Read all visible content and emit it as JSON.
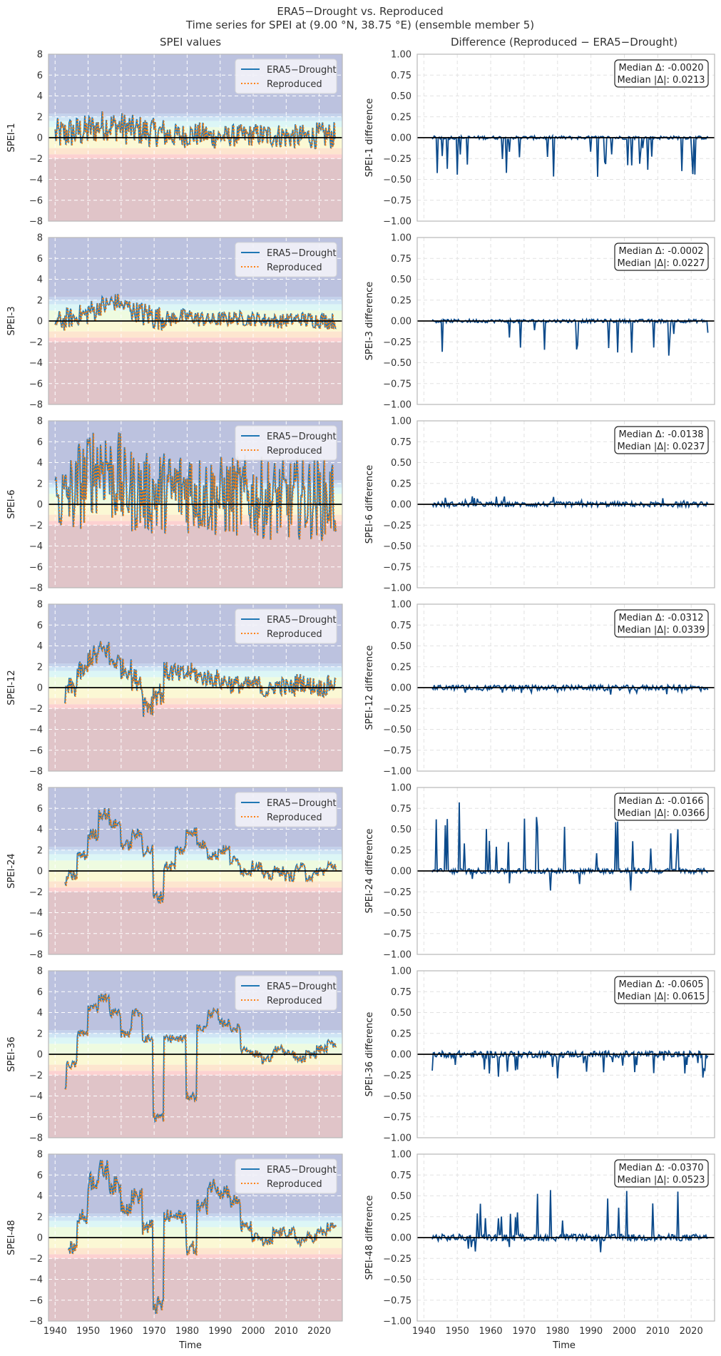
{
  "figure": {
    "title_line1": "ERA5−Drought vs. Reproduced",
    "title_line2": "Time series for SPEI at (9.00 °N, 38.75 °E) (ensemble member 5)",
    "left_column_title": "SPEI values",
    "right_column_title": "Difference (Reproduced − ERA5−Drought)",
    "x_label": "Time"
  },
  "chart_data": [
    {
      "type": "line",
      "panel": "left",
      "ylabel": "SPEI-1",
      "xlim": [
        1938,
        2027
      ],
      "ylim": [
        -8,
        8
      ],
      "yticks": [
        "8",
        "6",
        "4",
        "2",
        "0",
        "−2",
        "−4",
        "−6",
        "−8"
      ],
      "xticks": [
        "1940",
        "1950",
        "1960",
        "1970",
        "1980",
        "1990",
        "2000",
        "2010",
        "2020"
      ],
      "legend": [
        "ERA5−Drought",
        "Reproduced"
      ],
      "grid": true,
      "start_year": 1940,
      "mean": [
        0.3,
        0.5,
        0.6,
        0.9,
        1.2,
        1.1,
        0.9,
        0.7,
        0.6,
        0.5,
        0.3,
        0.2,
        0.3,
        0.3,
        0.1,
        0.1,
        0.2,
        0.2,
        0.3,
        0.2,
        0.2,
        0.1,
        0.1,
        0.1,
        0.2,
        0.2,
        0.2
      ],
      "vol": [
        1.6,
        1.6,
        1.6,
        1.5,
        1.5,
        1.5,
        1.6,
        1.5,
        1.5,
        1.4,
        1.3,
        1.2,
        1.2,
        1.2,
        1.2,
        1.1,
        1.1,
        1.1,
        1.1,
        1.2,
        1.2,
        1.2,
        1.2,
        1.2,
        1.3,
        1.3,
        1.3
      ],
      "colors": [
        "#1f77b4",
        "#ff7f0e"
      ]
    },
    {
      "type": "line",
      "panel": "right",
      "ylabel": "SPEI-1 difference",
      "xlim": [
        1938,
        2027
      ],
      "ylim": [
        -1.0,
        1.0
      ],
      "yticks": [
        "1.00",
        "0.75",
        "0.50",
        "0.25",
        "0.00",
        "−0.25",
        "−0.50",
        "−0.75",
        "−1.00"
      ],
      "xticks": [
        "1940",
        "1950",
        "1960",
        "1970",
        "1980",
        "1990",
        "2000",
        "2010",
        "2020"
      ],
      "median_delta": "Median Δ: -0.0020",
      "median_abs_delta": "Median |Δ|: 0.0213",
      "spike": -0.4,
      "base": 0.02,
      "color": "#0b4a8b"
    },
    {
      "type": "line",
      "panel": "left",
      "ylabel": "SPEI-3",
      "xlim": [
        1938,
        2027
      ],
      "ylim": [
        -8,
        8
      ],
      "yticks": [
        "8",
        "6",
        "4",
        "2",
        "0",
        "−2",
        "−4",
        "−6",
        "−8"
      ],
      "xticks": [
        "1940",
        "1950",
        "1960",
        "1970",
        "1980",
        "1990",
        "2000",
        "2010",
        "2020"
      ],
      "legend": [
        "ERA5−Drought",
        "Reproduced"
      ],
      "grid": true,
      "start_year": 1940,
      "mean": [
        0.0,
        0.3,
        0.6,
        1.0,
        1.5,
        1.8,
        1.4,
        0.9,
        0.6,
        0.3,
        0.2,
        0.4,
        0.4,
        0.2,
        0.1,
        0.2,
        0.3,
        0.2,
        0.2,
        0.1,
        0.0,
        0.1,
        0.2,
        0.1,
        0.1,
        0.0,
        0.1
      ],
      "vol": [
        1.0,
        1.0,
        1.0,
        1.1,
        1.0,
        0.9,
        0.9,
        1.0,
        1.3,
        1.2,
        0.8,
        0.8,
        0.8,
        0.8,
        0.7,
        0.7,
        0.7,
        0.7,
        0.7,
        0.7,
        0.7,
        0.7,
        0.7,
        0.8,
        0.8,
        0.8,
        0.9
      ],
      "colors": [
        "#1f77b4",
        "#ff7f0e"
      ]
    },
    {
      "type": "line",
      "panel": "right",
      "ylabel": "SPEI-3 difference",
      "xlim": [
        1938,
        2027
      ],
      "ylim": [
        -1.0,
        1.0
      ],
      "yticks": [
        "1.00",
        "0.75",
        "0.50",
        "0.25",
        "0.00",
        "−0.25",
        "−0.50",
        "−0.75",
        "−1.00"
      ],
      "xticks": [
        "1940",
        "1950",
        "1960",
        "1970",
        "1980",
        "1990",
        "2000",
        "2010",
        "2020"
      ],
      "median_delta": "Median Δ: -0.0002",
      "median_abs_delta": "Median |Δ|: 0.0227",
      "spike": -0.35,
      "base": 0.02,
      "color": "#0b4a8b"
    },
    {
      "type": "line",
      "panel": "left",
      "ylabel": "SPEI-6",
      "xlim": [
        1938,
        2027
      ],
      "ylim": [
        -8,
        8
      ],
      "yticks": [
        "8",
        "6",
        "4",
        "2",
        "0",
        "−2",
        "−4",
        "−6",
        "−8"
      ],
      "xticks": [
        "1940",
        "1950",
        "1960",
        "1970",
        "1980",
        "1990",
        "2000",
        "2010",
        "2020"
      ],
      "legend": [
        "ERA5−Drought",
        "Reproduced"
      ],
      "grid": true,
      "start_year": 1940,
      "mean": [
        0.5,
        1.0,
        2.0,
        3.5,
        4.0,
        2.5,
        1.5,
        1.2,
        1.0,
        1.0,
        1.2,
        1.5,
        1.6,
        1.0,
        0.8,
        0.7,
        0.8,
        0.8,
        0.6,
        0.6,
        0.5,
        0.4,
        0.6,
        0.6,
        0.5,
        0.5,
        0.6
      ],
      "vol": [
        3.5,
        4.0,
        4.5,
        4.5,
        4.5,
        4.5,
        4.0,
        4.0,
        4.0,
        4.5,
        4.0,
        4.0,
        4.5,
        4.0,
        4.0,
        4.0,
        4.0,
        4.0,
        4.0,
        4.0,
        4.0,
        4.0,
        4.0,
        4.0,
        4.0,
        4.0,
        4.0
      ],
      "colors": [
        "#1f77b4",
        "#ff7f0e"
      ]
    },
    {
      "type": "line",
      "panel": "right",
      "ylabel": "SPEI-6 difference",
      "xlim": [
        1938,
        2027
      ],
      "ylim": [
        -1.0,
        1.0
      ],
      "yticks": [
        "1.00",
        "0.75",
        "0.50",
        "0.25",
        "0.00",
        "−0.25",
        "−0.50",
        "−0.75",
        "−1.00"
      ],
      "xticks": [
        "1940",
        "1950",
        "1960",
        "1970",
        "1980",
        "1990",
        "2000",
        "2010",
        "2020"
      ],
      "median_delta": "Median Δ: -0.0138",
      "median_abs_delta": "Median |Δ|: 0.0237",
      "spike": 0.08,
      "base": 0.03,
      "color": "#0b4a8b"
    },
    {
      "type": "line",
      "panel": "left",
      "ylabel": "SPEI-12",
      "xlim": [
        1938,
        2027
      ],
      "ylim": [
        -8,
        8
      ],
      "yticks": [
        "8",
        "6",
        "4",
        "2",
        "0",
        "−2",
        "−4",
        "−6",
        "−8"
      ],
      "xticks": [
        "1940",
        "1950",
        "1960",
        "1970",
        "1980",
        "1990",
        "2000",
        "2010",
        "2020"
      ],
      "legend": [
        "ERA5−Drought",
        "Reproduced"
      ],
      "grid": true,
      "start_year": 1943,
      "mean": [
        -1.0,
        0.0,
        1.5,
        3.0,
        3.6,
        2.5,
        1.8,
        0.8,
        -1.5,
        -0.5,
        1.5,
        1.2,
        1.4,
        1.0,
        0.9,
        0.6,
        0.3,
        0.2,
        0.3,
        -0.3,
        0.2,
        0.0,
        0.5,
        0.2,
        0.0,
        0.3,
        1.5
      ],
      "vol": [
        1.2,
        1.0,
        1.0,
        1.1,
        1.0,
        1.0,
        1.0,
        1.1,
        1.3,
        1.2,
        1.0,
        1.0,
        1.0,
        0.9,
        0.9,
        0.9,
        0.9,
        0.9,
        0.9,
        0.9,
        0.9,
        0.9,
        0.9,
        0.9,
        0.9,
        0.9,
        0.9
      ],
      "colors": [
        "#1f77b4",
        "#ff7f0e"
      ]
    },
    {
      "type": "line",
      "panel": "right",
      "ylabel": "SPEI-12 difference",
      "xlim": [
        1938,
        2027
      ],
      "ylim": [
        -1.0,
        1.0
      ],
      "yticks": [
        "1.00",
        "0.75",
        "0.50",
        "0.25",
        "0.00",
        "−0.25",
        "−0.50",
        "−0.75",
        "−1.00"
      ],
      "xticks": [
        "1940",
        "1950",
        "1960",
        "1970",
        "1980",
        "1990",
        "2000",
        "2010",
        "2020"
      ],
      "median_delta": "Median Δ: -0.0312",
      "median_abs_delta": "Median |Δ|: 0.0339",
      "spike": -0.07,
      "base": 0.03,
      "color": "#0b4a8b"
    },
    {
      "type": "line",
      "panel": "left",
      "ylabel": "SPEI-24",
      "xlim": [
        1938,
        2027
      ],
      "ylim": [
        -8,
        8
      ],
      "yticks": [
        "8",
        "6",
        "4",
        "2",
        "0",
        "−2",
        "−4",
        "−6",
        "−8"
      ],
      "xticks": [
        "1940",
        "1950",
        "1960",
        "1970",
        "1980",
        "1990",
        "2000",
        "2010",
        "2020"
      ],
      "legend": [
        "ERA5−Drought",
        "Reproduced"
      ],
      "grid": true,
      "start_year": 1943,
      "mean": [
        -1.5,
        -0.5,
        1.5,
        3.5,
        5.5,
        4.5,
        2.5,
        3.5,
        2.0,
        -2.5,
        0.5,
        2.0,
        3.8,
        2.5,
        1.5,
        2.0,
        1.0,
        0.0,
        0.5,
        -0.5,
        0.0,
        -0.5,
        0.3,
        -0.5,
        0.0,
        0.5,
        2.5
      ],
      "vol": [
        0.5,
        0.5,
        0.5,
        0.6,
        0.6,
        0.5,
        0.5,
        0.5,
        0.6,
        0.6,
        0.5,
        0.5,
        0.5,
        0.5,
        0.5,
        0.5,
        0.5,
        0.5,
        0.5,
        0.5,
        0.5,
        0.5,
        0.5,
        0.5,
        0.5,
        0.5,
        0.5
      ],
      "colors": [
        "#1f77b4",
        "#ff7f0e"
      ]
    },
    {
      "type": "line",
      "panel": "right",
      "ylabel": "SPEI-24 difference",
      "xlim": [
        1938,
        2027
      ],
      "ylim": [
        -1.0,
        1.0
      ],
      "yticks": [
        "1.00",
        "0.75",
        "0.50",
        "0.25",
        "0.00",
        "−0.25",
        "−0.50",
        "−0.75",
        "−1.00"
      ],
      "xticks": [
        "1940",
        "1950",
        "1960",
        "1970",
        "1980",
        "1990",
        "2000",
        "2010",
        "2020"
      ],
      "median_delta": "Median Δ: -0.0166",
      "median_abs_delta": "Median |Δ|: 0.0366",
      "spike": 0.7,
      "base": 0.03,
      "color": "#0b4a8b"
    },
    {
      "type": "line",
      "panel": "left",
      "ylabel": "SPEI-36",
      "xlim": [
        1938,
        2027
      ],
      "ylim": [
        -8,
        8
      ],
      "yticks": [
        "8",
        "6",
        "4",
        "2",
        "0",
        "−2",
        "−4",
        "−6",
        "−8"
      ],
      "xticks": [
        "1940",
        "1950",
        "1960",
        "1970",
        "1980",
        "1990",
        "2000",
        "2010",
        "2020"
      ],
      "legend": [
        "ERA5−Drought",
        "Reproduced"
      ],
      "grid": true,
      "start_year": 1943,
      "mean": [
        -3.0,
        -1.0,
        2.0,
        4.5,
        5.5,
        4.0,
        2.0,
        4.0,
        1.5,
        -6.0,
        1.5,
        1.5,
        -4.0,
        2.5,
        4.0,
        3.0,
        2.5,
        0.5,
        0.0,
        -0.5,
        0.5,
        0.0,
        -0.5,
        0.0,
        0.5,
        1.0,
        1.8
      ],
      "vol": [
        0.4,
        0.4,
        0.4,
        0.4,
        0.4,
        0.4,
        0.4,
        0.4,
        0.4,
        0.5,
        0.4,
        0.4,
        0.4,
        0.4,
        0.4,
        0.4,
        0.4,
        0.4,
        0.4,
        0.4,
        0.4,
        0.4,
        0.4,
        0.4,
        0.4,
        0.4,
        0.4
      ],
      "colors": [
        "#1f77b4",
        "#ff7f0e"
      ]
    },
    {
      "type": "line",
      "panel": "right",
      "ylabel": "SPEI-36 difference",
      "xlim": [
        1938,
        2027
      ],
      "ylim": [
        -1.0,
        1.0
      ],
      "yticks": [
        "1.00",
        "0.75",
        "0.50",
        "0.25",
        "0.00",
        "−0.25",
        "−0.50",
        "−0.75",
        "−1.00"
      ],
      "xticks": [
        "1940",
        "1950",
        "1960",
        "1970",
        "1980",
        "1990",
        "2000",
        "2010",
        "2020"
      ],
      "median_delta": "Median Δ: -0.0605",
      "median_abs_delta": "Median |Δ|: 0.0615",
      "spike": -0.25,
      "base": 0.04,
      "color": "#0b4a8b"
    },
    {
      "type": "line",
      "panel": "left",
      "ylabel": "SPEI-48",
      "xlim": [
        1938,
        2027
      ],
      "ylim": [
        -8,
        8
      ],
      "yticks": [
        "8",
        "6",
        "4",
        "2",
        "0",
        "−2",
        "−4",
        "−6",
        "−8"
      ],
      "xticks": [
        "1940",
        "1950",
        "1960",
        "1970",
        "1980",
        "1990",
        "2000",
        "2010",
        "2020"
      ],
      "legend": [
        "ERA5−Drought",
        "Reproduced"
      ],
      "grid": true,
      "start_year": 1944,
      "mean": [
        -2.0,
        -1.0,
        2.0,
        5.5,
        6.5,
        5.0,
        3.0,
        4.0,
        1.0,
        -6.5,
        2.0,
        2.0,
        -1.0,
        3.0,
        5.0,
        4.5,
        3.5,
        1.0,
        0.0,
        -0.5,
        0.5,
        0.5,
        -0.3,
        0.0,
        0.5,
        1.0,
        1.5
      ],
      "vol": [
        0.6,
        0.6,
        0.8,
        1.0,
        1.0,
        0.9,
        0.8,
        0.8,
        0.8,
        0.9,
        0.7,
        0.7,
        0.7,
        0.8,
        0.8,
        0.8,
        0.7,
        0.6,
        0.5,
        0.5,
        0.5,
        0.5,
        0.5,
        0.5,
        0.5,
        0.5,
        0.5
      ],
      "colors": [
        "#1f77b4",
        "#ff7f0e"
      ]
    },
    {
      "type": "line",
      "panel": "right",
      "ylabel": "SPEI-48 difference",
      "xlim": [
        1938,
        2027
      ],
      "ylim": [
        -1.0,
        1.0
      ],
      "yticks": [
        "1.00",
        "0.75",
        "0.50",
        "0.25",
        "0.00",
        "−0.25",
        "−0.50",
        "−0.75",
        "−1.00"
      ],
      "xticks": [
        "1940",
        "1950",
        "1960",
        "1970",
        "1980",
        "1990",
        "2000",
        "2010",
        "2020"
      ],
      "median_delta": "Median Δ: -0.0370",
      "median_abs_delta": "Median |Δ|: 0.0523",
      "spike": 0.5,
      "base": 0.04,
      "color": "#0b4a8b"
    }
  ],
  "colors": {
    "zero_line": "#000000",
    "frame": "#b8b8b8",
    "grid_left": "#ffffff",
    "grid_right": "#e2e2e2",
    "bands": [
      "#bcc2df",
      "#c4d2ec",
      "#cfe5f5",
      "#dcf6f6",
      "#eefbe0",
      "#fbf8d4",
      "#fde5cf",
      "#fcd1d1",
      "#e0c4c8"
    ]
  }
}
